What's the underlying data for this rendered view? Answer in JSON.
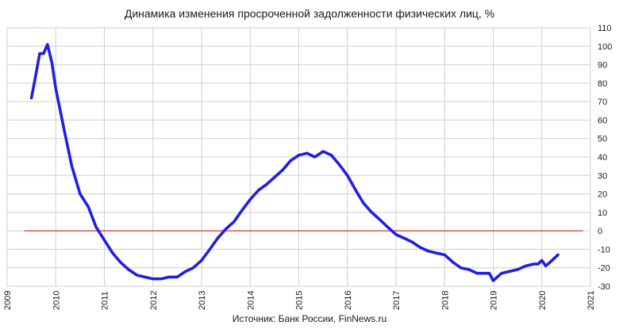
{
  "title": "Динамика изменения  просроченной задолженности физических лиц, %",
  "source": "Источник: Банк России, FinNews.ru",
  "chart_data": {
    "type": "line",
    "title": "Динамика изменения  просроченной задолженности физических лиц, %",
    "xlabel": "",
    "ylabel": "",
    "xlim": [
      2009,
      2021
    ],
    "ylim": [
      -30,
      110
    ],
    "x_ticks": [
      "2009",
      "2010",
      "2011",
      "2012",
      "2013",
      "2014",
      "2015",
      "2016",
      "2017",
      "2018",
      "2019",
      "2020",
      "2021"
    ],
    "y_ticks": [
      "110",
      "100",
      "90",
      "80",
      "70",
      "60",
      "50",
      "40",
      "30",
      "20",
      "10",
      "0",
      "-10",
      "-20",
      "-30"
    ],
    "y_axis_side": "right",
    "grid": "horizontal and vertical",
    "series": [
      {
        "color": "#1f1fe6",
        "x": [
          2009.5,
          2009.58,
          2009.67,
          2009.75,
          2009.83,
          2009.92,
          2010.0,
          2010.17,
          2010.33,
          2010.5,
          2010.67,
          2010.83,
          2011.0,
          2011.17,
          2011.33,
          2011.5,
          2011.67,
          2011.83,
          2012.0,
          2012.17,
          2012.33,
          2012.5,
          2012.67,
          2012.83,
          2013.0,
          2013.17,
          2013.33,
          2013.5,
          2013.67,
          2013.83,
          2014.0,
          2014.17,
          2014.33,
          2014.5,
          2014.67,
          2014.83,
          2015.0,
          2015.17,
          2015.33,
          2015.5,
          2015.67,
          2015.83,
          2016.0,
          2016.17,
          2016.33,
          2016.5,
          2016.67,
          2016.83,
          2017.0,
          2017.17,
          2017.33,
          2017.5,
          2017.67,
          2017.83,
          2018.0,
          2018.17,
          2018.33,
          2018.5,
          2018.67,
          2018.83,
          2018.92,
          2019.0,
          2019.17,
          2019.33,
          2019.5,
          2019.67,
          2019.83,
          2019.92,
          2020.0,
          2020.08,
          2020.17,
          2020.33
        ],
        "y": [
          72,
          83,
          96,
          96,
          101,
          91,
          77,
          55,
          35,
          20,
          13,
          2,
          -5,
          -12,
          -17,
          -21,
          -24,
          -25,
          -26,
          -26,
          -25,
          -25,
          -22,
          -20,
          -16,
          -10,
          -4,
          1,
          5,
          11,
          17,
          22,
          25,
          29,
          33,
          38,
          41,
          42,
          40,
          43,
          41,
          36,
          30,
          22,
          15,
          10,
          6,
          2,
          -2,
          -4,
          -6,
          -9,
          -11,
          -12,
          -13,
          -17,
          -20,
          -21,
          -23,
          -23,
          -23,
          -27,
          -23,
          -22,
          -21,
          -19,
          -18,
          -18,
          -16,
          -19,
          -17,
          -13
        ]
      }
    ],
    "reference_line": {
      "y": 0,
      "color": "#e03030"
    }
  }
}
